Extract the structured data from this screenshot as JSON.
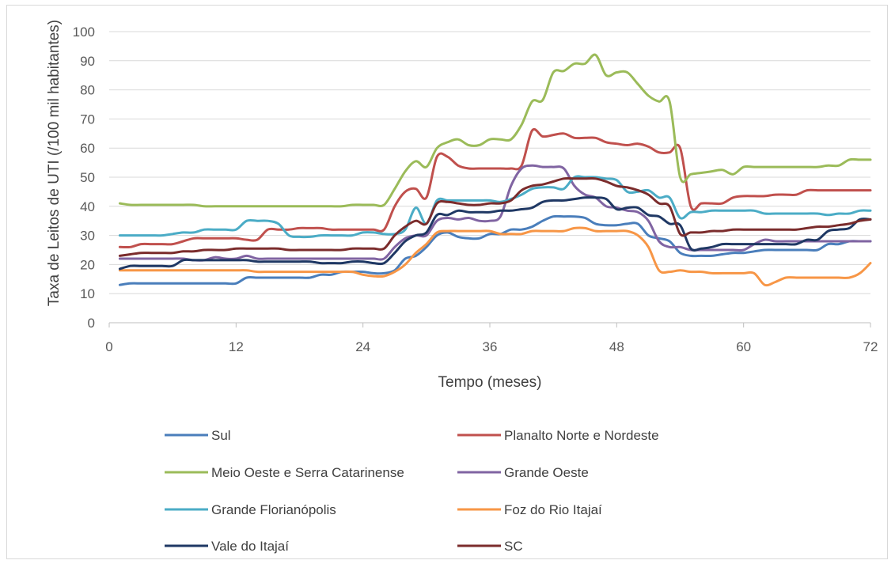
{
  "chart_data": {
    "type": "line",
    "title": "",
    "xlabel": "Tempo (meses)",
    "ylabel": "Taxa de Leitos de UTI (/100 mil habitantes)",
    "xlim": [
      0,
      72
    ],
    "ylim": [
      0,
      100
    ],
    "xticks": [
      0,
      12,
      24,
      36,
      48,
      60,
      72
    ],
    "yticks": [
      0,
      10,
      20,
      30,
      40,
      50,
      60,
      70,
      80,
      90,
      100
    ],
    "grid": "horizontal",
    "legend_position": "bottom",
    "x": [
      1,
      2,
      3,
      4,
      5,
      6,
      7,
      8,
      9,
      10,
      11,
      12,
      13,
      14,
      15,
      16,
      17,
      18,
      19,
      20,
      21,
      22,
      23,
      24,
      25,
      26,
      27,
      28,
      29,
      30,
      31,
      32,
      33,
      34,
      35,
      36,
      37,
      38,
      39,
      40,
      41,
      42,
      43,
      44,
      45,
      46,
      47,
      48,
      49,
      50,
      51,
      52,
      53,
      54,
      55,
      56,
      57,
      58,
      59,
      60,
      61,
      62,
      63,
      64,
      65,
      66,
      67,
      68,
      69,
      70,
      71,
      72
    ],
    "series": [
      {
        "name": "Sul",
        "color": "#4a7ebb",
        "values": [
          13,
          13.5,
          13.5,
          13.5,
          13.5,
          13.5,
          13.5,
          13.5,
          13.5,
          13.5,
          13.5,
          13.5,
          15.5,
          15.5,
          15.5,
          15.5,
          15.5,
          15.5,
          15.5,
          16.5,
          16.5,
          17.5,
          17.5,
          17.5,
          17,
          17,
          18,
          22,
          23,
          26,
          30,
          31,
          29.5,
          29,
          29,
          30.5,
          30.5,
          32,
          32,
          33,
          35,
          36.5,
          36.5,
          36.5,
          36,
          34,
          33.5,
          33.5,
          34,
          34,
          30,
          29,
          28,
          24,
          23,
          23,
          23,
          23.5,
          24,
          24,
          24.5,
          25,
          25,
          25,
          25,
          25,
          25,
          27,
          27,
          28,
          28,
          28
        ]
      },
      {
        "name": "Planalto Norte e Nordeste",
        "color": "#c0504d",
        "values": [
          26,
          26,
          27,
          27,
          27,
          27,
          28,
          29,
          29,
          29,
          29,
          29,
          28.5,
          28.5,
          32,
          32,
          32,
          32.5,
          32.5,
          32.5,
          32,
          32,
          32,
          32,
          32,
          32,
          40,
          45,
          46,
          43,
          57,
          57,
          54,
          53,
          53,
          53,
          53,
          53,
          54,
          66,
          64,
          64.5,
          65,
          63.5,
          63.5,
          63.5,
          62,
          61.5,
          61,
          61.5,
          60.5,
          58.5,
          58.5,
          60,
          40,
          41,
          41,
          41,
          43,
          43.5,
          43.5,
          43.5,
          44,
          44,
          44,
          45.5,
          45.5,
          45.5,
          45.5,
          45.5,
          45.5,
          45.5
        ]
      },
      {
        "name": "Meio Oeste e Serra Catarinense",
        "color": "#9bbb59",
        "values": [
          41,
          40.5,
          40.5,
          40.5,
          40.5,
          40.5,
          40.5,
          40.5,
          40,
          40,
          40,
          40,
          40,
          40,
          40,
          40,
          40,
          40,
          40,
          40,
          40,
          40,
          40.5,
          40.5,
          40.5,
          40.5,
          46,
          52,
          55.5,
          53.5,
          60,
          62,
          63,
          61,
          61,
          63,
          63,
          63,
          68,
          76,
          76.5,
          86,
          86.5,
          89,
          89,
          92,
          85,
          86,
          86,
          82,
          78,
          76,
          76,
          50,
          51,
          51.5,
          52,
          52.5,
          51,
          53.5,
          53.5,
          53.5,
          53.5,
          53.5,
          53.5,
          53.5,
          53.5,
          54,
          54,
          56,
          56,
          56
        ]
      },
      {
        "name": "Grande Oeste",
        "color": "#8064a2",
        "values": [
          22,
          22,
          22,
          22,
          22,
          22,
          22,
          21.5,
          21.5,
          22.5,
          22,
          22,
          23,
          22,
          22,
          22,
          22,
          22,
          22,
          22,
          22,
          22,
          22,
          22,
          22,
          22,
          26,
          29,
          30,
          30,
          35,
          36,
          35.5,
          36,
          35,
          35,
          36.5,
          47,
          53,
          54,
          53.5,
          53.5,
          53,
          47,
          44,
          43,
          40,
          39.5,
          38.5,
          38,
          35,
          28,
          26,
          26,
          25,
          25,
          25,
          25,
          25,
          25,
          27,
          28.5,
          28,
          28,
          28,
          28,
          28,
          28,
          28,
          28,
          28,
          28
        ]
      },
      {
        "name": "Grande Florianópolis",
        "color": "#4bacc6",
        "values": [
          30,
          30,
          30,
          30,
          30,
          30.5,
          31,
          31,
          32,
          32,
          32,
          32,
          35,
          35,
          35,
          34,
          30,
          29.5,
          29.5,
          30,
          30,
          30,
          30,
          31,
          31,
          30.5,
          30.5,
          32,
          39.5,
          34,
          42,
          42,
          42,
          42,
          42,
          42,
          41.5,
          42.5,
          44,
          46,
          46.5,
          46.5,
          46,
          50,
          50,
          50,
          49.5,
          49,
          45,
          45,
          45.5,
          43,
          43,
          36,
          38,
          38,
          38.5,
          38.5,
          38.5,
          38.5,
          38.5,
          37.5,
          37.5,
          37.5,
          37.5,
          37.5,
          37.5,
          37,
          37.5,
          37.5,
          38.5,
          38.5
        ]
      },
      {
        "name": "Foz do Rio Itajaí",
        "color": "#f79646",
        "values": [
          18,
          18,
          18,
          18,
          18,
          18,
          18,
          18,
          18,
          18,
          18,
          18,
          18,
          17.5,
          17.5,
          17.5,
          17.5,
          17.5,
          17.5,
          17.5,
          17.5,
          17.5,
          17.5,
          16.5,
          16,
          16,
          17.5,
          20,
          24,
          27,
          31,
          31.5,
          31.5,
          31.5,
          31.5,
          31.5,
          30.5,
          30.5,
          30.5,
          31.5,
          31.5,
          31.5,
          31.5,
          32.5,
          32.5,
          31.5,
          31.5,
          31.5,
          31.5,
          30,
          26,
          18,
          17.5,
          18,
          17.5,
          17.5,
          17,
          17,
          17,
          17,
          17,
          13,
          14,
          15.5,
          15.5,
          15.5,
          15.5,
          15.5,
          15.5,
          15.5,
          17,
          20.5
        ]
      },
      {
        "name": "Vale do Itajaí",
        "color": "#1f3864",
        "values": [
          18.5,
          19.5,
          19.5,
          19.5,
          19.5,
          19.5,
          21.5,
          21.5,
          21.5,
          21.5,
          21.5,
          21.5,
          21.5,
          21,
          21,
          21,
          21,
          21,
          21,
          20.5,
          20.5,
          20.5,
          21,
          21,
          20.5,
          20.5,
          24,
          28,
          30,
          31,
          37,
          37,
          38.5,
          38,
          38,
          38,
          38.5,
          38.5,
          39,
          39.5,
          41.5,
          42,
          42,
          42.5,
          43,
          43,
          42.5,
          39,
          39.5,
          39.5,
          37,
          36.5,
          34,
          33.5,
          25.5,
          25.5,
          26,
          27,
          27,
          27,
          27,
          27,
          27,
          27,
          27,
          28.5,
          28.5,
          31.5,
          32,
          32.5,
          35.5,
          35.5
        ]
      },
      {
        "name": "SC",
        "color": "#7b2c2c",
        "values": [
          23,
          23.5,
          24,
          24,
          24,
          24,
          24.5,
          24.5,
          25,
          25,
          25,
          25.5,
          25.5,
          25.5,
          25.5,
          25.5,
          25,
          25,
          25,
          25,
          25,
          25,
          25.5,
          25.5,
          25.5,
          25.5,
          30,
          33,
          35,
          34,
          41,
          41.5,
          41,
          40.5,
          40.5,
          41,
          41,
          42,
          45.5,
          47,
          47.5,
          48.5,
          49.5,
          49.5,
          49.5,
          49.5,
          48.5,
          47,
          46.5,
          45.5,
          44,
          41,
          40,
          30.5,
          31,
          31,
          31.5,
          31.5,
          32,
          32,
          32,
          32,
          32,
          32,
          32,
          32.5,
          33,
          33,
          33.5,
          34,
          35,
          35.5
        ]
      }
    ]
  }
}
